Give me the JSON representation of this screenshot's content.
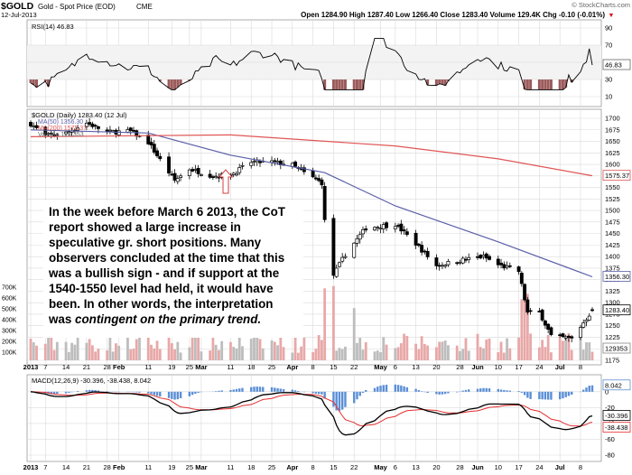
{
  "header": {
    "symbol": "$GOLD",
    "name": "Gold - Spot Price (EOD)",
    "exchange": "CME",
    "watermark": "© StockCharts.com",
    "date": "12-Jul-2013",
    "quote": "Open 1284.90  High 1287.40  Low 1266.40  Close 1283.40  Volume 129.4K  Chg -0.10 (-0.01%)",
    "chg_arrow": "▼"
  },
  "rsi_panel": {
    "label": "RSI(14) 46.83",
    "ticks": [
      "90",
      "70",
      "50",
      "30",
      "10"
    ],
    "value_badge": "46.83"
  },
  "price_panel": {
    "legend": [
      "$GOLD (Daily) 1283.40 (12 Jul)",
      "MA(50) 1356.30",
      "MA(200) 1575.37",
      "Volume 129,353"
    ],
    "price_ticks": [
      "1700",
      "1675",
      "1650",
      "1625",
      "1600",
      "1575",
      "1550",
      "1525",
      "1500",
      "1475",
      "1450",
      "1425",
      "1400",
      "1375",
      "1350",
      "1325",
      "1300",
      "1275",
      "1250",
      "1225",
      "1200",
      "1175"
    ],
    "volume_ticks": [
      "700K",
      "600K",
      "500K",
      "400K",
      "300K",
      "200K",
      "100K"
    ],
    "badges": [
      "1575.37",
      "1356.30",
      "1283.40",
      "129353"
    ]
  },
  "macd_panel": {
    "label": "MACD(12,26,9) -30.396, -38.438, 8.042",
    "ticks": [
      "0",
      "-20",
      "-40",
      "-60",
      "-80"
    ],
    "badges": [
      "8.042",
      "-30.396",
      "-38.438"
    ]
  },
  "date_axis": [
    "2013",
    "7",
    "14",
    "21",
    "28",
    "Feb",
    "11",
    "19",
    "25",
    "Mar",
    "11",
    "18",
    "25",
    "Apr",
    "8",
    "15",
    "22",
    "May",
    "6",
    "13",
    "20",
    "28",
    "Jun",
    "10",
    "17",
    "24",
    "Jul",
    "8"
  ],
  "annotation": {
    "text_1": "In the week before March 6 2013, the CoT report showed a large increase in speculative gr. short positions. Many observers concluded at the time that this was a bullish sign - and if support at the 1540-1550 level had held, it would have been. In other words, the interpretation was ",
    "emphasis": "contingent on the primary trend.",
    "arrow": "up-arrow-icon"
  },
  "colors": {
    "up_candle": "#000000",
    "ma50": "#5a5fa8",
    "ma200": "#e05555",
    "volume_up": "#bdbdbd",
    "volume_down": "#e8a8a8",
    "macd_line": "#000000",
    "signal_line": "#e53030",
    "histogram": "#5b8fd6",
    "rsi_fill": "#9b5b5b",
    "panel_bg": "#f3f3f3",
    "grid": "#dadada"
  },
  "chart_data": {
    "type": "candlestick",
    "symbol": "$GOLD",
    "period": "Daily",
    "x_start": "2013-01-02",
    "x_end": "2013-07-12",
    "ylim": [
      1175,
      1700
    ],
    "close_path": [
      [
        "2013-01-02",
        1688
      ],
      [
        "2013-01-07",
        1662
      ],
      [
        "2013-01-14",
        1668
      ],
      [
        "2013-01-21",
        1690
      ],
      [
        "2013-01-28",
        1670
      ],
      [
        "2013-02-05",
        1672
      ],
      [
        "2013-02-11",
        1648
      ],
      [
        "2013-02-15",
        1610
      ],
      [
        "2013-02-20",
        1565
      ],
      [
        "2013-02-25",
        1590
      ],
      [
        "2013-03-05",
        1575
      ],
      [
        "2013-03-11",
        1577
      ],
      [
        "2013-03-18",
        1605
      ],
      [
        "2013-03-25",
        1605
      ],
      [
        "2013-04-01",
        1598
      ],
      [
        "2013-04-05",
        1582
      ],
      [
        "2013-04-11",
        1560
      ],
      [
        "2013-04-12",
        1477
      ],
      [
        "2013-04-15",
        1360
      ],
      [
        "2013-04-19",
        1405
      ],
      [
        "2013-04-26",
        1462
      ],
      [
        "2013-05-06",
        1470
      ],
      [
        "2013-05-13",
        1428
      ],
      [
        "2013-05-20",
        1380
      ],
      [
        "2013-05-28",
        1392
      ],
      [
        "2013-06-05",
        1400
      ],
      [
        "2013-06-10",
        1382
      ],
      [
        "2013-06-17",
        1368
      ],
      [
        "2013-06-20",
        1278
      ],
      [
        "2013-06-24",
        1280
      ],
      [
        "2013-06-28",
        1228
      ],
      [
        "2013-07-05",
        1222
      ],
      [
        "2013-07-08",
        1248
      ],
      [
        "2013-07-12",
        1283.4
      ]
    ],
    "last_bar": {
      "date": "2013-07-12",
      "open": 1284.9,
      "high": 1287.4,
      "low": 1266.4,
      "close": 1283.4,
      "volume": 129353
    },
    "ma50_path": [
      [
        "2013-01-02",
        1675
      ],
      [
        "2013-02-11",
        1668
      ],
      [
        "2013-03-11",
        1620
      ],
      [
        "2013-04-12",
        1582
      ],
      [
        "2013-05-06",
        1510
      ],
      [
        "2013-06-10",
        1432
      ],
      [
        "2013-07-12",
        1356.3
      ]
    ],
    "ma200_path": [
      [
        "2013-01-02",
        1660
      ],
      [
        "2013-03-11",
        1664
      ],
      [
        "2013-05-06",
        1640
      ],
      [
        "2013-06-10",
        1612
      ],
      [
        "2013-07-12",
        1575.37
      ]
    ],
    "rsi": {
      "period": 14,
      "last": 46.83,
      "ylim": [
        10,
        90
      ]
    },
    "macd": {
      "params": [
        12,
        26,
        9
      ],
      "macd": -30.396,
      "signal": -38.438,
      "histogram": 8.042
    }
  }
}
